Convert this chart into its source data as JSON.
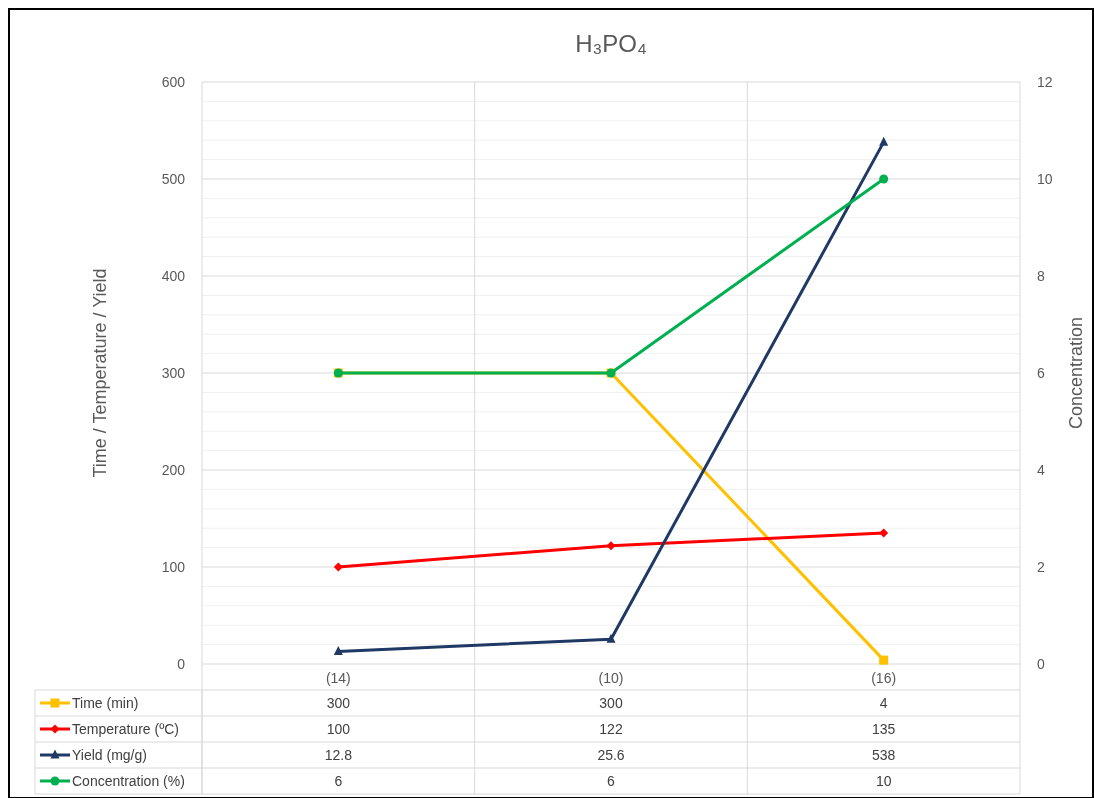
{
  "chart_data": {
    "type": "line",
    "title": "H₃PO₄",
    "ylabel": "Time / Temperature / Yield",
    "y2label": "Concentration",
    "categories": [
      "(14)",
      "(10)",
      "(16)"
    ],
    "series": [
      {
        "name": "Time (min)",
        "color": "#ffc000",
        "marker": "square",
        "values": [
          300,
          300,
          4
        ]
      },
      {
        "name": "Temperature (ºC)",
        "color": "#ff0000",
        "marker": "diamond",
        "values": [
          100,
          122,
          135
        ]
      },
      {
        "name": "Yield (mg/g)",
        "color": "#203864",
        "marker": "triangle",
        "values": [
          12.8,
          25.6,
          538
        ]
      },
      {
        "name": "Concentration (%)",
        "color": "#00b050",
        "marker": "circle",
        "axis": "y2",
        "values": [
          6,
          6,
          10
        ]
      }
    ],
    "ylim": [
      0,
      600
    ],
    "yticks": [
      0,
      100,
      200,
      300,
      400,
      500,
      600
    ],
    "y2lim": [
      0,
      12
    ],
    "y2ticks": [
      0,
      2,
      4,
      6,
      8,
      10,
      12
    ],
    "grid": true,
    "legend": "bottom",
    "data_labels": true,
    "line_style": "solid"
  }
}
